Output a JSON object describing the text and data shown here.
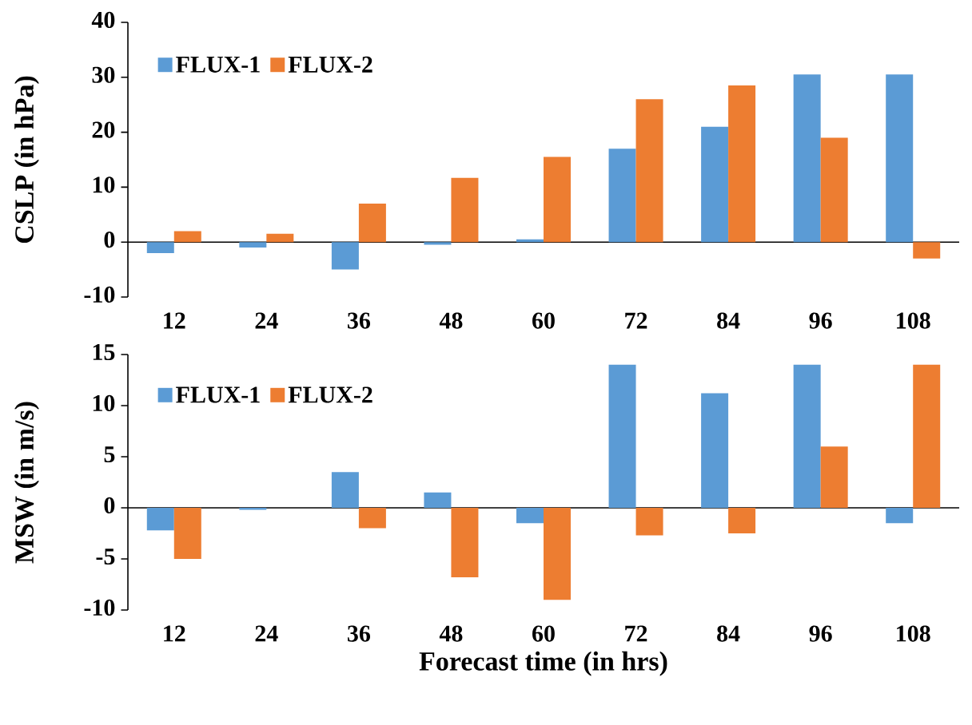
{
  "chart_data": [
    {
      "type": "bar",
      "ylabel": "CSLP (in hPa)",
      "categories": [
        "12",
        "24",
        "36",
        "48",
        "60",
        "72",
        "84",
        "96",
        "108"
      ],
      "series": [
        {
          "name": "FLUX-1",
          "color": "#5b9bd5",
          "values": [
            -2,
            -1,
            -5,
            -0.5,
            0.5,
            17,
            21,
            30.5,
            30.5
          ]
        },
        {
          "name": "FLUX-2",
          "color": "#ed7d31",
          "values": [
            2,
            1.5,
            7,
            11.7,
            15.5,
            26,
            28.5,
            19,
            -3
          ]
        }
      ],
      "ylim": [
        -10,
        40
      ],
      "yticks": [
        -10,
        0,
        10,
        20,
        30,
        40
      ],
      "legend": "top left"
    },
    {
      "type": "bar",
      "ylabel": "MSW (in m/s)",
      "xlabel": "Forecast time (in hrs)",
      "categories": [
        "12",
        "24",
        "36",
        "48",
        "60",
        "72",
        "84",
        "96",
        "108"
      ],
      "series": [
        {
          "name": "FLUX-1",
          "color": "#5b9bd5",
          "values": [
            -2.2,
            -0.2,
            3.5,
            1.5,
            -1.5,
            14,
            11.2,
            14,
            -1.5
          ]
        },
        {
          "name": "FLUX-2",
          "color": "#ed7d31",
          "values": [
            -5,
            0,
            -2,
            -6.8,
            -9,
            -2.7,
            -2.5,
            6,
            14
          ]
        }
      ],
      "ylim": [
        -10,
        15
      ],
      "yticks": [
        -10,
        -5,
        0,
        5,
        10,
        15
      ],
      "legend": "top left"
    }
  ]
}
